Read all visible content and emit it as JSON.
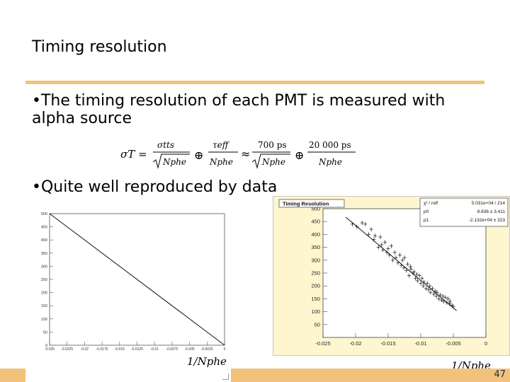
{
  "slide": {
    "title": "Timing resolution",
    "bullet1": "•The timing resolution of each PMT is measured with alpha source",
    "bullet2": "•Quite well reproduced by data",
    "page_number": "47",
    "accent_color": "#f2c27a"
  },
  "chart_data": [
    {
      "type": "line",
      "xlabel": "1/Nphe",
      "x_ticks": [
        "-0.025",
        "-0.0225",
        "-0.02",
        "-0.0175",
        "-0.015",
        "-0.0125",
        "-0.01",
        "-0.0075",
        "-0.005",
        "-0.0025",
        "0"
      ],
      "y_ticks": [
        "0",
        "50",
        "100",
        "150",
        "200",
        "250",
        "300",
        "350",
        "400",
        "450",
        "500"
      ],
      "xlim": [
        -0.025,
        0.0
      ],
      "ylim": [
        0,
        500
      ],
      "series": [
        {
          "x": [
            -0.025,
            0.0
          ],
          "y": [
            500,
            0
          ]
        }
      ],
      "grid": false
    },
    {
      "type": "scatter",
      "title": "Timing Resolution",
      "xlabel": "1/Nphe",
      "x_ticks": [
        "-0.025",
        "-0.02",
        "-0.015",
        "-0.01",
        "-0.005",
        "0"
      ],
      "y_ticks": [
        "50",
        "100",
        "150",
        "200",
        "250",
        "300",
        "350",
        "400",
        "450",
        "500"
      ],
      "xlim": [
        -0.025,
        0.0
      ],
      "ylim": [
        0,
        500
      ],
      "stats": [
        {
          "name": "χ² / ndf",
          "value": "5.031e+04 / 214"
        },
        {
          "name": "p0",
          "value": "8.836 ± 3.411"
        },
        {
          "name": "p1",
          "value": "-2.132e+04 ± 323"
        }
      ],
      "fit": {
        "x": [
          -0.0215,
          -0.0045
        ],
        "y": [
          467,
          104
        ]
      },
      "points": {
        "x": [
          -0.0205,
          -0.0198,
          -0.019,
          -0.0185,
          -0.018,
          -0.0176,
          -0.0172,
          -0.017,
          -0.0165,
          -0.0162,
          -0.016,
          -0.0158,
          -0.0155,
          -0.0152,
          -0.015,
          -0.0148,
          -0.0145,
          -0.0143,
          -0.014,
          -0.0138,
          -0.0135,
          -0.0132,
          -0.013,
          -0.0128,
          -0.0126,
          -0.0125,
          -0.0122,
          -0.012,
          -0.0118,
          -0.0116,
          -0.0115,
          -0.0112,
          -0.011,
          -0.0108,
          -0.0106,
          -0.0105,
          -0.0102,
          -0.01,
          -0.0098,
          -0.0096,
          -0.0095,
          -0.0092,
          -0.009,
          -0.0088,
          -0.0086,
          -0.0085,
          -0.0082,
          -0.008,
          -0.0078,
          -0.0076,
          -0.0075,
          -0.0072,
          -0.007,
          -0.0068,
          -0.0066,
          -0.0065,
          -0.0062,
          -0.006,
          -0.0058,
          -0.0056,
          -0.0055,
          -0.0052,
          -0.005
        ],
        "y": [
          440,
          430,
          445,
          440,
          400,
          420,
          380,
          395,
          350,
          390,
          360,
          340,
          370,
          330,
          345,
          320,
          355,
          300,
          330,
          310,
          290,
          320,
          280,
          300,
          270,
          310,
          260,
          285,
          240,
          275,
          265,
          250,
          255,
          230,
          245,
          220,
          240,
          210,
          230,
          200,
          215,
          190,
          210,
          185,
          200,
          175,
          190,
          168,
          180,
          160,
          175,
          150,
          165,
          145,
          160,
          140,
          155,
          135,
          150,
          130,
          140,
          125,
          120
        ]
      }
    }
  ],
  "formula": {
    "lhs": "σT =",
    "t1_num": "σtts",
    "t1_den": "Nphe",
    "t2_num": "τeff",
    "t2_den": "Nphe",
    "approx": "≈",
    "t3_num": "700 ps",
    "t3_den": "Nphe",
    "t4_num": "20 000 ps",
    "t4_den": "Nphe",
    "oplus": "⊕"
  }
}
